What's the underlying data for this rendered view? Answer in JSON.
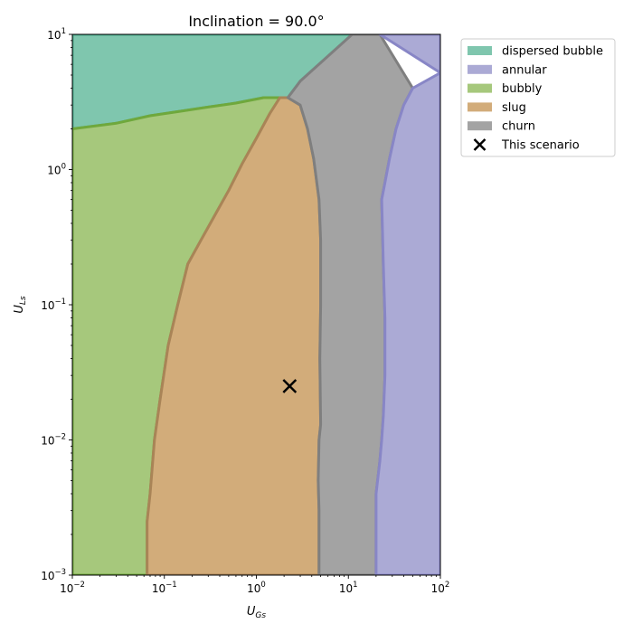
{
  "chart_data": {
    "type": "area",
    "title": "Inclination = 90.0°",
    "xlabel": "U",
    "xlabel_sub": "Gs",
    "ylabel": "U",
    "ylabel_sub": "Ls",
    "x_scale": "log",
    "y_scale": "log",
    "xlim": [
      0.01,
      100
    ],
    "ylim": [
      0.001,
      10
    ],
    "x_ticks": [
      {
        "value": 0.01,
        "base": "10",
        "exp": "−2"
      },
      {
        "value": 0.1,
        "base": "10",
        "exp": "−1"
      },
      {
        "value": 1,
        "base": "10",
        "exp": "0"
      },
      {
        "value": 10,
        "base": "10",
        "exp": "1"
      },
      {
        "value": 100,
        "base": "10",
        "exp": "2"
      }
    ],
    "y_ticks": [
      {
        "value": 0.001,
        "base": "10",
        "exp": "−3"
      },
      {
        "value": 0.01,
        "base": "10",
        "exp": "−2"
      },
      {
        "value": 0.1,
        "base": "10",
        "exp": "−1"
      },
      {
        "value": 1,
        "base": "10",
        "exp": "0"
      },
      {
        "value": 10,
        "base": "10",
        "exp": "1"
      }
    ],
    "grid": false,
    "legend_position": "outside-top-right",
    "regions": [
      {
        "name": "dispersed bubble",
        "color": "#7fc6ae",
        "edge": "#4aa98b",
        "boundary": [
          [
            0.01,
            10
          ],
          [
            11,
            10
          ],
          [
            3,
            4.5
          ],
          [
            2.2,
            3.4
          ],
          [
            1.8,
            3.4
          ],
          [
            1.2,
            3.4
          ],
          [
            0.6,
            3.1
          ],
          [
            0.3,
            2.9
          ],
          [
            0.15,
            2.7
          ],
          [
            0.07,
            2.5
          ],
          [
            0.03,
            2.2
          ],
          [
            0.01,
            2.0
          ]
        ]
      },
      {
        "name": "bubbly",
        "color": "#a6c87c",
        "edge": "#6fa83c",
        "boundary": [
          [
            0.01,
            2.0
          ],
          [
            0.03,
            2.2
          ],
          [
            0.07,
            2.5
          ],
          [
            0.15,
            2.7
          ],
          [
            0.3,
            2.9
          ],
          [
            0.6,
            3.1
          ],
          [
            1.2,
            3.4
          ],
          [
            1.8,
            3.4
          ],
          [
            1.4,
            2.6
          ],
          [
            1.0,
            1.7
          ],
          [
            0.7,
            1.1
          ],
          [
            0.5,
            0.7
          ],
          [
            0.38,
            0.5
          ],
          [
            0.25,
            0.3
          ],
          [
            0.18,
            0.2
          ],
          [
            0.14,
            0.1
          ],
          [
            0.11,
            0.05
          ],
          [
            0.09,
            0.02
          ],
          [
            0.078,
            0.01
          ],
          [
            0.07,
            0.004
          ],
          [
            0.065,
            0.0025
          ],
          [
            0.065,
            0.001
          ],
          [
            0.01,
            0.001
          ]
        ]
      },
      {
        "name": "slug",
        "color": "#d2ac7a",
        "edge": "#a98457",
        "boundary": [
          [
            1.8,
            3.4
          ],
          [
            2.2,
            3.4
          ],
          [
            3.0,
            3.0
          ],
          [
            3.6,
            2.0
          ],
          [
            4.2,
            1.2
          ],
          [
            4.8,
            0.6
          ],
          [
            5.0,
            0.3
          ],
          [
            5.0,
            0.1
          ],
          [
            4.9,
            0.04
          ],
          [
            5.0,
            0.013
          ],
          [
            4.8,
            0.01
          ],
          [
            4.7,
            0.005
          ],
          [
            4.8,
            0.003
          ],
          [
            4.8,
            0.001
          ],
          [
            0.065,
            0.001
          ],
          [
            0.065,
            0.0025
          ],
          [
            0.07,
            0.004
          ],
          [
            0.078,
            0.01
          ],
          [
            0.09,
            0.02
          ],
          [
            0.11,
            0.05
          ],
          [
            0.14,
            0.1
          ],
          [
            0.18,
            0.2
          ],
          [
            0.25,
            0.3
          ],
          [
            0.38,
            0.5
          ],
          [
            0.5,
            0.7
          ],
          [
            0.7,
            1.1
          ],
          [
            1.0,
            1.7
          ],
          [
            1.4,
            2.6
          ]
        ]
      },
      {
        "name": "churn",
        "color": "#a3a3a3",
        "edge": "#7f7f7f",
        "boundary": [
          [
            11,
            10
          ],
          [
            22,
            10
          ],
          [
            50,
            4.0
          ],
          [
            40,
            3.0
          ],
          [
            33,
            2.0
          ],
          [
            28,
            1.2
          ],
          [
            25,
            0.8
          ],
          [
            23,
            0.6
          ],
          [
            24,
            0.2
          ],
          [
            25,
            0.08
          ],
          [
            25,
            0.03
          ],
          [
            24,
            0.015
          ],
          [
            23,
            0.01
          ],
          [
            22,
            0.007
          ],
          [
            20,
            0.004
          ],
          [
            20,
            0.002
          ],
          [
            20,
            0.001
          ],
          [
            4.8,
            0.001
          ],
          [
            4.8,
            0.003
          ],
          [
            4.7,
            0.005
          ],
          [
            4.8,
            0.01
          ],
          [
            5.0,
            0.013
          ],
          [
            4.9,
            0.04
          ],
          [
            5.0,
            0.1
          ],
          [
            5.0,
            0.3
          ],
          [
            4.8,
            0.6
          ],
          [
            4.2,
            1.2
          ],
          [
            3.6,
            2.0
          ],
          [
            3.0,
            3.0
          ],
          [
            2.2,
            3.4
          ],
          [
            3,
            4.5
          ]
        ]
      },
      {
        "name": "annular",
        "color": "#abaad5",
        "edge": "#8886c6",
        "boundary": [
          [
            22,
            10
          ],
          [
            100,
            10
          ],
          [
            100,
            0.001
          ],
          [
            20,
            0.001
          ],
          [
            20,
            0.002
          ],
          [
            20,
            0.004
          ],
          [
            22,
            0.007
          ],
          [
            23,
            0.01
          ],
          [
            24,
            0.015
          ],
          [
            25,
            0.03
          ],
          [
            25,
            0.08
          ],
          [
            24,
            0.2
          ],
          [
            23,
            0.6
          ],
          [
            25,
            0.8
          ],
          [
            28,
            1.2
          ],
          [
            33,
            2.0
          ],
          [
            40,
            3.0
          ],
          [
            50,
            4.0
          ],
          [
            100,
            5.2
          ]
        ]
      }
    ],
    "scenario": {
      "name": "This scenario",
      "x": 2.3,
      "y": 0.025
    },
    "legend": [
      {
        "label": "dispersed bubble",
        "color": "#7fc6ae",
        "marker": "patch"
      },
      {
        "label": "annular",
        "color": "#abaad5",
        "marker": "patch"
      },
      {
        "label": "bubbly",
        "color": "#a6c87c",
        "marker": "patch"
      },
      {
        "label": "slug",
        "color": "#d2ac7a",
        "marker": "patch"
      },
      {
        "label": "churn",
        "color": "#a3a3a3",
        "marker": "patch"
      },
      {
        "label": "This scenario",
        "color": "#000000",
        "marker": "x"
      }
    ]
  }
}
